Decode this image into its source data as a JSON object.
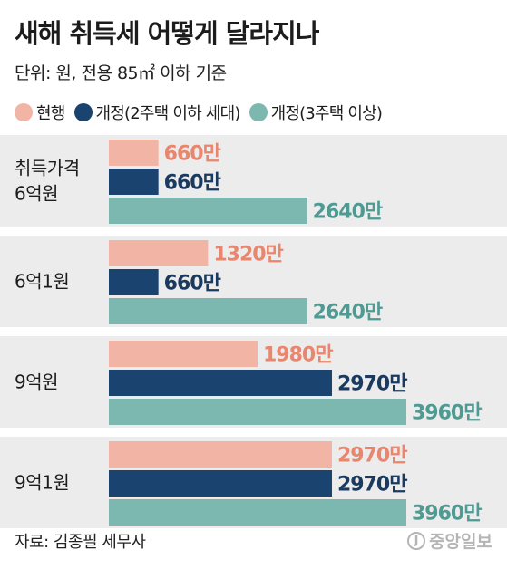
{
  "header": {
    "title": "새해 취득세 어떻게 달라지나",
    "subtitle": "단위: 원, 전용 85㎡ 이하 기준"
  },
  "colors": {
    "current": "#f2b4a4",
    "revised_2": "#1b4370",
    "revised_3": "#7cb8b0",
    "label_current": "#e8866e",
    "label_revised_2": "#1b3a5f",
    "label_revised_3": "#4f9a92",
    "band": "#ececec"
  },
  "chart_data": {
    "type": "bar",
    "orientation": "horizontal",
    "unit": "원",
    "categories": [
      "취득가격\n6억원",
      "6억1원",
      "9억원",
      "9억1원"
    ],
    "series": [
      {
        "name": "현행",
        "values": [
          6600000,
          13200000,
          19800000,
          29700000
        ],
        "labels": [
          "660만",
          "1320만",
          "1980만",
          "2970만"
        ]
      },
      {
        "name": "개정(2주택 이하 세대)",
        "values": [
          6600000,
          6600000,
          29700000,
          29700000
        ],
        "labels": [
          "660만",
          "660만",
          "2970만",
          "2970만"
        ]
      },
      {
        "name": "개정(3주택 이상)",
        "values": [
          26400000,
          26400000,
          39600000,
          39600000
        ],
        "labels": [
          "2640만",
          "2640만",
          "3960만",
          "3960만"
        ]
      }
    ],
    "xlim": [
      0,
      39600000
    ],
    "grid": false,
    "legend_position": "top"
  },
  "footer": {
    "source": "자료: 김종필 세무사",
    "logo_mark": "J",
    "logo_text": "중앙일보"
  }
}
